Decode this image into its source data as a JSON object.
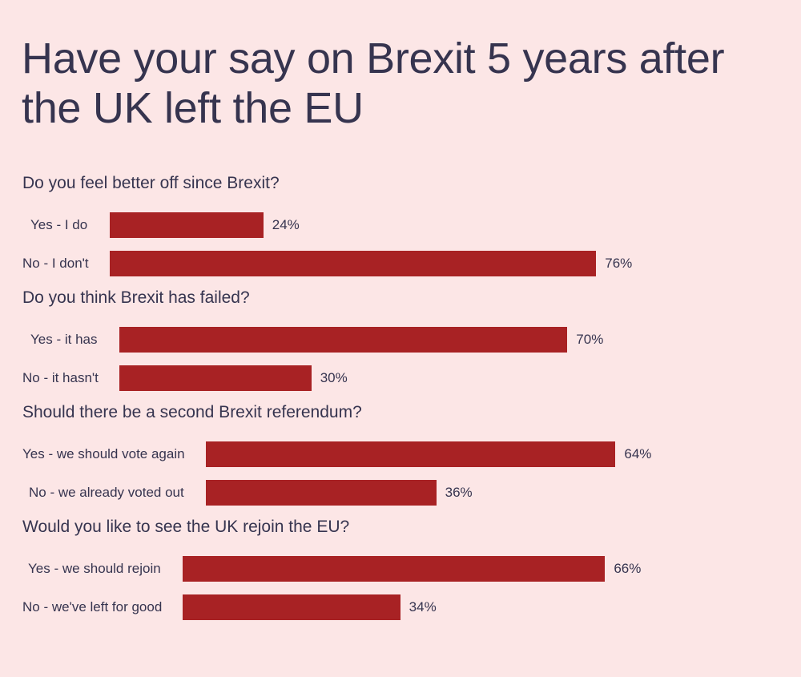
{
  "chart_data": {
    "type": "bar",
    "orientation": "horizontal",
    "title": "Have your say on Brexit 5 years after the UK left the EU",
    "unit": "%",
    "bar_color": "#a82224",
    "groups": [
      {
        "question": "Do you feel better off since Brexit?",
        "categories": [
          "Yes - I do",
          "No - I don't"
        ],
        "values": [
          24,
          76
        ]
      },
      {
        "question": "Do you think Brexit has failed?",
        "categories": [
          "Yes - it has",
          "No - it hasn't"
        ],
        "values": [
          70,
          30
        ]
      },
      {
        "question": "Should there be a second Brexit referendum?",
        "categories": [
          "Yes - we should vote again",
          "No - we already voted out"
        ],
        "values": [
          64,
          36
        ]
      },
      {
        "question": "Would you like to see the UK rejoin the EU?",
        "categories": [
          "Yes - we should rejoin",
          "No - we've left for good"
        ],
        "values": [
          66,
          34
        ]
      }
    ]
  }
}
